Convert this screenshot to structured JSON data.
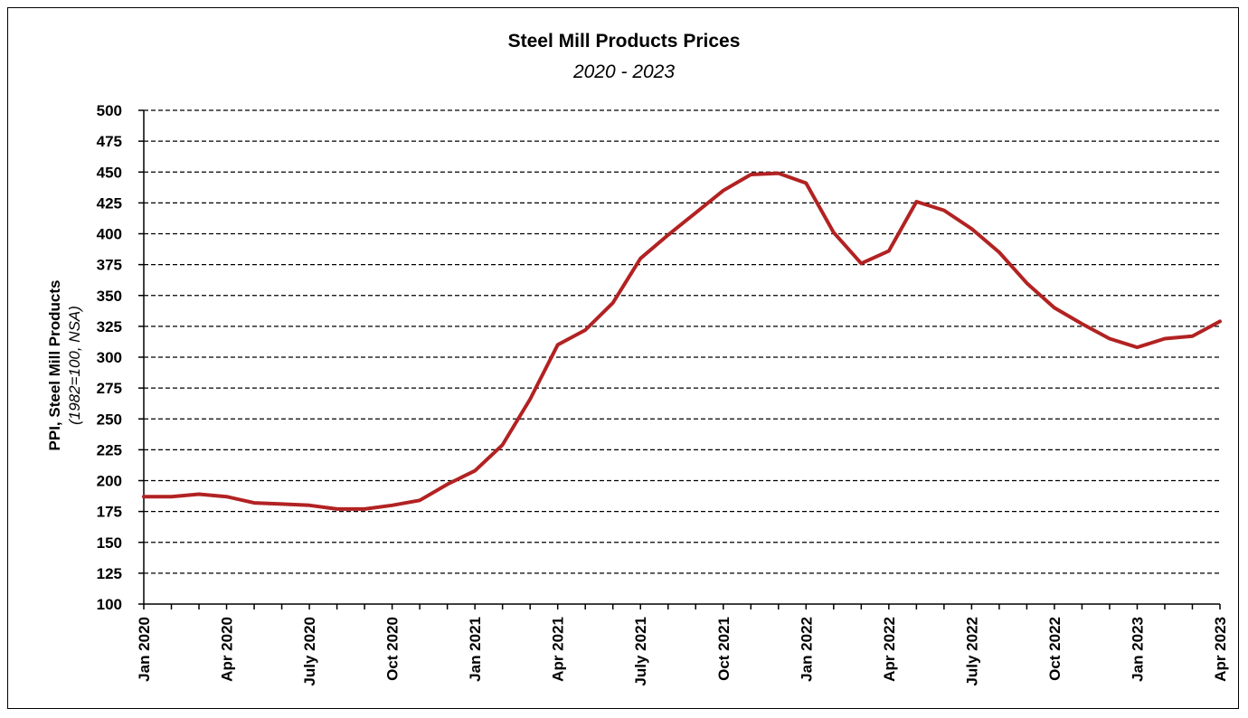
{
  "chart_data": {
    "type": "line",
    "title": "Steel Mill Products Prices",
    "subtitle": "2020 - 2023",
    "ylabel": "PPI, Steel Mill Products",
    "ylabel_note": "(1982=100, NSA)",
    "xlabel": "",
    "ylim": [
      100,
      500
    ],
    "ytick_step": 25,
    "grid": "horizontal-dashed",
    "legend": "none",
    "line_color": "#b22222",
    "x_tick_labels": [
      "Jan 2020",
      "Apr 2020",
      "July 2020",
      "Oct 2020",
      "Jan 2021",
      "Apr 2021",
      "July 2021",
      "Oct 2021",
      "Jan 2022",
      "Apr 2022",
      "July 2022",
      "Oct 2022",
      "Jan 2023",
      "Apr 2023"
    ],
    "x": [
      "2020-01",
      "2020-02",
      "2020-03",
      "2020-04",
      "2020-05",
      "2020-06",
      "2020-07",
      "2020-08",
      "2020-09",
      "2020-10",
      "2020-11",
      "2020-12",
      "2021-01",
      "2021-02",
      "2021-03",
      "2021-04",
      "2021-05",
      "2021-06",
      "2021-07",
      "2021-08",
      "2021-09",
      "2021-10",
      "2021-11",
      "2021-12",
      "2022-01",
      "2022-02",
      "2022-03",
      "2022-04",
      "2022-05",
      "2022-06",
      "2022-07",
      "2022-08",
      "2022-09",
      "2022-10",
      "2022-11",
      "2022-12",
      "2023-01",
      "2023-02",
      "2023-03",
      "2023-04"
    ],
    "series": [
      {
        "values": [
          187,
          187,
          189,
          187,
          182,
          181,
          180,
          177,
          177,
          180,
          184,
          197,
          208,
          229,
          266,
          310,
          322,
          344,
          380,
          399,
          417,
          435,
          448,
          449,
          441,
          401,
          376,
          386,
          426,
          419,
          404,
          385,
          360,
          340,
          327,
          315,
          308,
          315,
          317,
          329
        ]
      }
    ]
  }
}
